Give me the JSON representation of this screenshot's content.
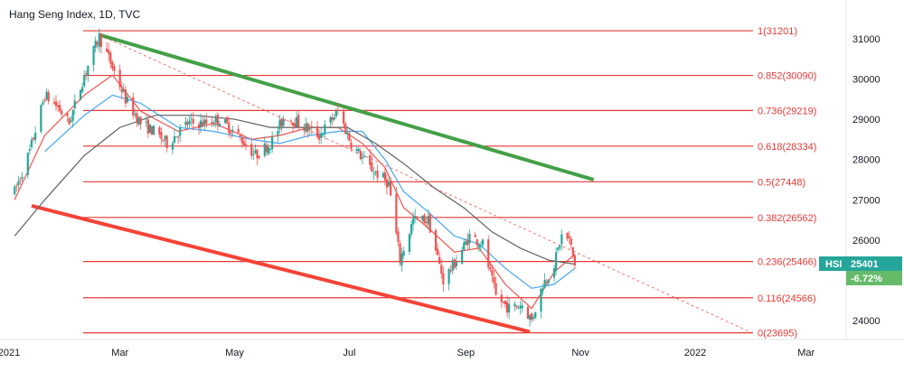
{
  "chart_data": {
    "type": "candlestick",
    "title": "Hang Seng Index, 1D, TVC",
    "x_ticks": [
      "2021",
      "Mar",
      "May",
      "Jul",
      "Sep",
      "Nov",
      "2022",
      "Mar"
    ],
    "y_ticks": [
      24000,
      25000,
      26000,
      27000,
      28000,
      29000,
      30000,
      31000
    ],
    "ylim": [
      23450,
      31500
    ],
    "grid": false,
    "colors": {
      "up": "#26a69a",
      "down": "#ef5350",
      "fib": "#e53935",
      "ma_red": "#ef5350",
      "ma_blue": "#42a5f5",
      "ma_gray": "#616161",
      "resistance": "#43a047",
      "support": "#f44336",
      "badge_symbol": "#26a69a",
      "badge_change": "#66bb6a"
    },
    "fib_levels": [
      {
        "label": "1(31201)",
        "value": 31201
      },
      {
        "label": "0.852(30090)",
        "value": 30090
      },
      {
        "label": "0.736(29219)",
        "value": 29219
      },
      {
        "label": "0.618(28334)",
        "value": 28334
      },
      {
        "label": "0.5(27448)",
        "value": 27448
      },
      {
        "label": "0.382(26562)",
        "value": 26562
      },
      {
        "label": "0.236(25466)",
        "value": 25466
      },
      {
        "label": "0.116(24566)",
        "value": 24566
      },
      {
        "label": "0(23695)",
        "value": 23695
      }
    ],
    "trend_lines": [
      {
        "name": "resistance",
        "from": {
          "x": "2021-02-18",
          "y": 31100
        },
        "to": {
          "x": "2021-11-08",
          "y": 27500
        }
      },
      {
        "name": "support",
        "from": {
          "x": "2021-01-13",
          "y": 26850
        },
        "to": {
          "x": "2021-10-05",
          "y": 23720
        }
      },
      {
        "name": "dotted",
        "from": {
          "x": "2021-02-18",
          "y": 31100
        },
        "to": {
          "x": "2022-01-31",
          "y": 23700
        }
      }
    ],
    "price_path": [
      [
        "2021-01-04",
        27200
      ],
      [
        "2021-01-12",
        28200
      ],
      [
        "2021-01-20",
        29600
      ],
      [
        "2021-01-27",
        29300
      ],
      [
        "2021-02-02",
        28900
      ],
      [
        "2021-02-10",
        30100
      ],
      [
        "2021-02-18",
        31050
      ],
      [
        "2021-02-25",
        30300
      ],
      [
        "2021-03-04",
        29500
      ],
      [
        "2021-03-12",
        28900
      ],
      [
        "2021-03-19",
        28700
      ],
      [
        "2021-03-26",
        28400
      ],
      [
        "2021-04-06",
        28900
      ],
      [
        "2021-04-15",
        28900
      ],
      [
        "2021-04-23",
        29000
      ],
      [
        "2021-05-03",
        28600
      ],
      [
        "2021-05-12",
        28100
      ],
      [
        "2021-05-20",
        28400
      ],
      [
        "2021-05-28",
        29100
      ],
      [
        "2021-06-04",
        28900
      ],
      [
        "2021-06-15",
        28600
      ],
      [
        "2021-06-25",
        29200
      ],
      [
        "2021-07-02",
        28400
      ],
      [
        "2021-07-12",
        27800
      ],
      [
        "2021-07-22",
        27400
      ],
      [
        "2021-07-28",
        25500
      ],
      [
        "2021-08-04",
        26500
      ],
      [
        "2021-08-12",
        26500
      ],
      [
        "2021-08-20",
        25000
      ],
      [
        "2021-08-27",
        25500
      ],
      [
        "2021-09-03",
        26100
      ],
      [
        "2021-09-10",
        25900
      ],
      [
        "2021-09-17",
        24600
      ],
      [
        "2021-09-24",
        24300
      ],
      [
        "2021-10-01",
        24400
      ],
      [
        "2021-10-06",
        24000
      ],
      [
        "2021-10-12",
        24900
      ],
      [
        "2021-10-18",
        25400
      ],
      [
        "2021-10-22",
        26100
      ],
      [
        "2021-10-26",
        26000
      ],
      [
        "2021-10-29",
        25401
      ]
    ],
    "moving_averages": [
      {
        "color_key": "ma_red",
        "values": [
          [
            "2021-01-04",
            27000
          ],
          [
            "2021-01-20",
            28600
          ],
          [
            "2021-02-10",
            29600
          ],
          [
            "2021-02-25",
            30100
          ],
          [
            "2021-03-12",
            29200
          ],
          [
            "2021-04-01",
            28700
          ],
          [
            "2021-04-20",
            28900
          ],
          [
            "2021-05-10",
            28500
          ],
          [
            "2021-05-25",
            28600
          ],
          [
            "2021-06-10",
            28800
          ],
          [
            "2021-06-25",
            28800
          ],
          [
            "2021-07-08",
            28400
          ],
          [
            "2021-07-20",
            27800
          ],
          [
            "2021-07-30",
            26800
          ],
          [
            "2021-08-12",
            26300
          ],
          [
            "2021-08-26",
            25700
          ],
          [
            "2021-09-08",
            25800
          ],
          [
            "2021-09-22",
            24900
          ],
          [
            "2021-10-06",
            24300
          ],
          [
            "2021-10-18",
            25200
          ],
          [
            "2021-10-29",
            25650
          ]
        ]
      },
      {
        "color_key": "ma_blue",
        "values": [
          [
            "2021-01-20",
            28200
          ],
          [
            "2021-02-10",
            29100
          ],
          [
            "2021-02-25",
            29600
          ],
          [
            "2021-03-12",
            29400
          ],
          [
            "2021-04-01",
            28800
          ],
          [
            "2021-04-20",
            28700
          ],
          [
            "2021-05-10",
            28500
          ],
          [
            "2021-05-25",
            28400
          ],
          [
            "2021-06-10",
            28600
          ],
          [
            "2021-06-25",
            28700
          ],
          [
            "2021-07-08",
            28700
          ],
          [
            "2021-07-20",
            28000
          ],
          [
            "2021-07-30",
            27200
          ],
          [
            "2021-08-12",
            26700
          ],
          [
            "2021-08-26",
            26100
          ],
          [
            "2021-09-08",
            25900
          ],
          [
            "2021-09-22",
            25300
          ],
          [
            "2021-10-06",
            24800
          ],
          [
            "2021-10-18",
            24900
          ],
          [
            "2021-10-29",
            25300
          ]
        ]
      },
      {
        "color_key": "ma_gray",
        "values": [
          [
            "2021-01-04",
            26100
          ],
          [
            "2021-01-20",
            27000
          ],
          [
            "2021-02-10",
            28100
          ],
          [
            "2021-03-01",
            28800
          ],
          [
            "2021-03-20",
            29100
          ],
          [
            "2021-04-10",
            29100
          ],
          [
            "2021-05-01",
            29000
          ],
          [
            "2021-05-20",
            28800
          ],
          [
            "2021-06-10",
            28800
          ],
          [
            "2021-06-30",
            28800
          ],
          [
            "2021-07-15",
            28400
          ],
          [
            "2021-07-30",
            27900
          ],
          [
            "2021-08-15",
            27300
          ],
          [
            "2021-08-31",
            26800
          ],
          [
            "2021-09-15",
            26200
          ],
          [
            "2021-09-30",
            25800
          ],
          [
            "2021-10-15",
            25500
          ],
          [
            "2021-10-29",
            25400
          ]
        ]
      }
    ],
    "last": {
      "symbol": "HSI",
      "price": "25401",
      "change": "-6.72%"
    }
  }
}
